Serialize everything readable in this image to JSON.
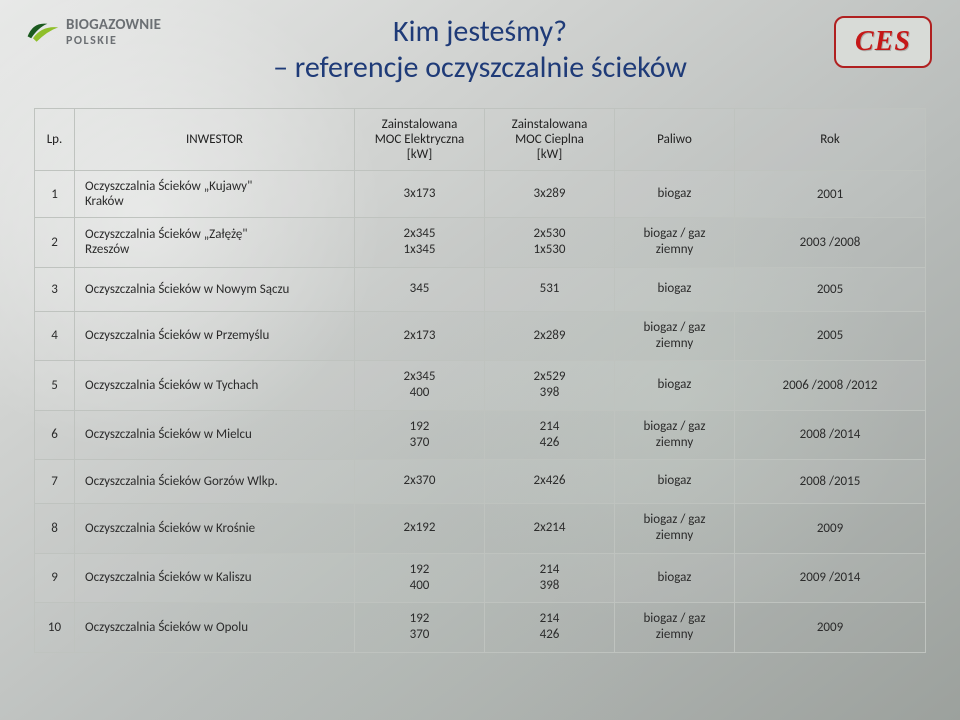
{
  "logo_left": {
    "line1": "BIOGAZOWNIE",
    "line2": "POLSKIE",
    "leaf_dark": "#1b5a1f",
    "leaf_light": "#8fbf2a"
  },
  "logo_right": {
    "text": "CES",
    "border": "#b02020",
    "fill": "#d8dbd7",
    "text_color": "#c51818"
  },
  "title": {
    "line1": "Kim jesteśmy?",
    "line2": "– referencje oczyszczalnie ścieków",
    "color": "#1f3b78",
    "fontsize": 30
  },
  "table": {
    "border_color": "#bfc3bf",
    "header_fontsize": 13,
    "cell_fontsize": 13,
    "columns": [
      {
        "key": "lp",
        "label": "Lp."
      },
      {
        "key": "inv",
        "label": "INWESTOR"
      },
      {
        "key": "me",
        "label": "Zainstalowana\nMOC Elektryczna\n[kW]"
      },
      {
        "key": "mc",
        "label": "Zainstalowana\nMOC Cieplna\n[kW]"
      },
      {
        "key": "pal",
        "label": "Paliwo"
      },
      {
        "key": "rok",
        "label": "Rok"
      }
    ],
    "rows": [
      {
        "lp": "1",
        "inv": "Oczyszczalnia Ścieków „Kujawy\"\nKraków",
        "me": "3x173",
        "mc": "3x289",
        "pal": "biogaz",
        "rok": "2001"
      },
      {
        "lp": "2",
        "inv": "Oczyszczalnia Ścieków „Załężę\"\nRzeszów",
        "me": "2x345\n1x345",
        "mc": "2x530\n1x530",
        "pal": "biogaz / gaz\nziemny",
        "rok": "2003 /2008"
      },
      {
        "lp": "3",
        "inv": "Oczyszczalnia Ścieków w Nowym Sączu",
        "me": "345",
        "mc": "531",
        "pal": "biogaz",
        "rok": "2005"
      },
      {
        "lp": "4",
        "inv": "Oczyszczalnia Ścieków w Przemyślu",
        "me": "2x173",
        "mc": "2x289",
        "pal": "biogaz / gaz\nziemny",
        "rok": "2005"
      },
      {
        "lp": "5",
        "inv": "Oczyszczalnia Ścieków w Tychach",
        "me": "2x345\n400",
        "mc": "2x529\n398",
        "pal": "biogaz",
        "rok": "2006 /2008 /2012"
      },
      {
        "lp": "6",
        "inv": "Oczyszczalnia Ścieków w Mielcu",
        "me": "192\n370",
        "mc": "214\n426",
        "pal": "biogaz / gaz\nziemny",
        "rok": "2008 /2014"
      },
      {
        "lp": "7",
        "inv": "Oczyszczalnia Ścieków Gorzów Wlkp.",
        "me": "2x370",
        "mc": "2x426",
        "pal": "biogaz",
        "rok": "2008 /2015"
      },
      {
        "lp": "8",
        "inv": "Oczyszczalnia Ścieków  w Krośnie",
        "me": "2x192",
        "mc": "2x214",
        "pal": "biogaz / gaz\nziemny",
        "rok": "2009"
      },
      {
        "lp": "9",
        "inv": "Oczyszczalnia Ścieków  w Kaliszu",
        "me": "192\n400",
        "mc": "214\n398",
        "pal": "biogaz",
        "rok": "2009 /2014"
      },
      {
        "lp": "10",
        "inv": "Oczyszczalnia Ścieków w Opolu",
        "me": "192\n370",
        "mc": "214\n426",
        "pal": "biogaz / gaz\nziemny",
        "rok": "2009"
      }
    ]
  },
  "background": {
    "gradient_from": "#e8e9e8",
    "gradient_to": "#9ca19d"
  }
}
